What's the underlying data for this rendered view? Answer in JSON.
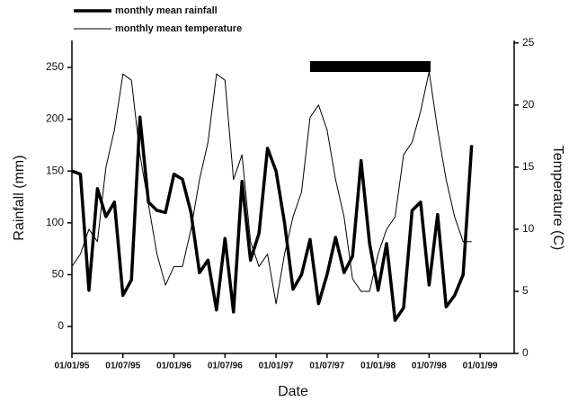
{
  "chart_data": {
    "type": "line",
    "x_label": "Date",
    "y_label": "Rainfall (mm)",
    "y2_label": "Temperature (C)",
    "x": [
      "01/01/95",
      "01/02/95",
      "01/03/95",
      "01/04/95",
      "01/05/95",
      "01/06/95",
      "01/07/95",
      "01/08/95",
      "01/09/95",
      "01/10/95",
      "01/11/95",
      "01/12/95",
      "01/01/96",
      "01/02/96",
      "01/03/96",
      "01/04/96",
      "01/05/96",
      "01/06/96",
      "01/07/96",
      "01/08/96",
      "01/09/96",
      "01/10/96",
      "01/11/96",
      "01/12/96",
      "01/01/97",
      "01/02/97",
      "01/03/97",
      "01/04/97",
      "01/05/97",
      "01/06/97",
      "01/07/97",
      "01/08/97",
      "01/09/97",
      "01/10/97",
      "01/11/97",
      "01/12/97",
      "01/01/98",
      "01/02/98",
      "01/03/98",
      "01/04/98",
      "01/05/98",
      "01/06/98",
      "01/07/98",
      "01/08/98",
      "01/09/98",
      "01/10/98",
      "01/11/98",
      "01/12/98"
    ],
    "series": [
      {
        "name": "monthly mean rainfall",
        "color": "#000000",
        "width": 3.5,
        "values": [
          150,
          147,
          35,
          133,
          106,
          120,
          30,
          45,
          202,
          120,
          112,
          110,
          147,
          142,
          110,
          52,
          64,
          16,
          85,
          14,
          140,
          64,
          90,
          172,
          150,
          100,
          36,
          50,
          84,
          22,
          50,
          86,
          52,
          68,
          160,
          80,
          35,
          80,
          6,
          18,
          112,
          120,
          40,
          108,
          19,
          30,
          50,
          175
        ]
      },
      {
        "name": "monthly mean temperature",
        "color": "#000000",
        "width": 1,
        "axis": "y2",
        "values": [
          7,
          8,
          10,
          9,
          15,
          18,
          22.5,
          22,
          16,
          12,
          8,
          5.5,
          7,
          7,
          10,
          14,
          17,
          22.5,
          22,
          14,
          16,
          9,
          7,
          8,
          4,
          8,
          11,
          13,
          19,
          20,
          18,
          14,
          11,
          6,
          5,
          5,
          8,
          10,
          11,
          16,
          17,
          19.5,
          22.7,
          18,
          14,
          11,
          9,
          9
        ]
      }
    ],
    "xlim": [
      "01/01/95",
      "01/05/99"
    ],
    "xticks": [
      "01/01/95",
      "01/07/95",
      "01/01/96",
      "01/07/96",
      "01/01/97",
      "01/07/97",
      "01/01/98",
      "01/07/98",
      "01/01/99"
    ],
    "ylim": [
      -26,
      276
    ],
    "yticks": [
      0,
      50,
      100,
      150,
      200,
      250
    ],
    "y2lim": [
      0,
      25.2
    ],
    "y2ticks": [
      0,
      5,
      10,
      15,
      20,
      25
    ]
  }
}
